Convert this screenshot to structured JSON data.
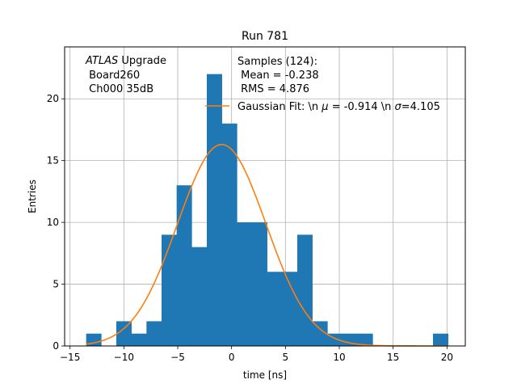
{
  "chart_data": {
    "type": "bar",
    "title": "Run 781",
    "xlabel": "time [ns]",
    "ylabel": "Entries",
    "xlim": [
      -15.5,
      21.7
    ],
    "ylim": [
      0,
      24.2
    ],
    "xticks": [
      -15,
      -10,
      -5,
      0,
      5,
      10,
      15,
      20
    ],
    "yticks": [
      0,
      5,
      10,
      15,
      20
    ],
    "grid": true,
    "bar_color": "#1f77b4",
    "fit_color": "#ff7f0e",
    "bin_edges": [
      -13.5,
      -12.1,
      -10.7,
      -9.3,
      -7.9,
      -6.5,
      -5.1,
      -3.7,
      -2.3,
      -0.9,
      0.5,
      1.9,
      3.3,
      4.7,
      6.1,
      7.5,
      8.9,
      10.3,
      11.7,
      13.1,
      14.5,
      15.9,
      17.3,
      18.7,
      20.1
    ],
    "counts": [
      1,
      0,
      2,
      1,
      2,
      9,
      13,
      8,
      22,
      18,
      10,
      10,
      6,
      6,
      9,
      2,
      1,
      1,
      1,
      0,
      0,
      0,
      0,
      1
    ],
    "gaussian_fit": {
      "mu": -0.914,
      "sigma": 4.105,
      "amplitude": 16.3,
      "x_range": [
        -13.5,
        20.1
      ]
    },
    "annotation": [
      "ATLAS",
      " Upgrade",
      " Board260",
      " Ch000 35dB"
    ],
    "legend": {
      "location": "upper-right",
      "samples_title": "Samples (124):",
      "mean_line": " Mean = -0.238",
      "rms_line": " RMS = 4.876",
      "fit_label_prefix": "Gaussian Fit: \\n ",
      "fit_mu_symbol": "μ",
      "fit_mu_value": " = -0.914 \\n ",
      "fit_sigma_symbol": "σ",
      "fit_sigma_value": "=4.105"
    }
  }
}
